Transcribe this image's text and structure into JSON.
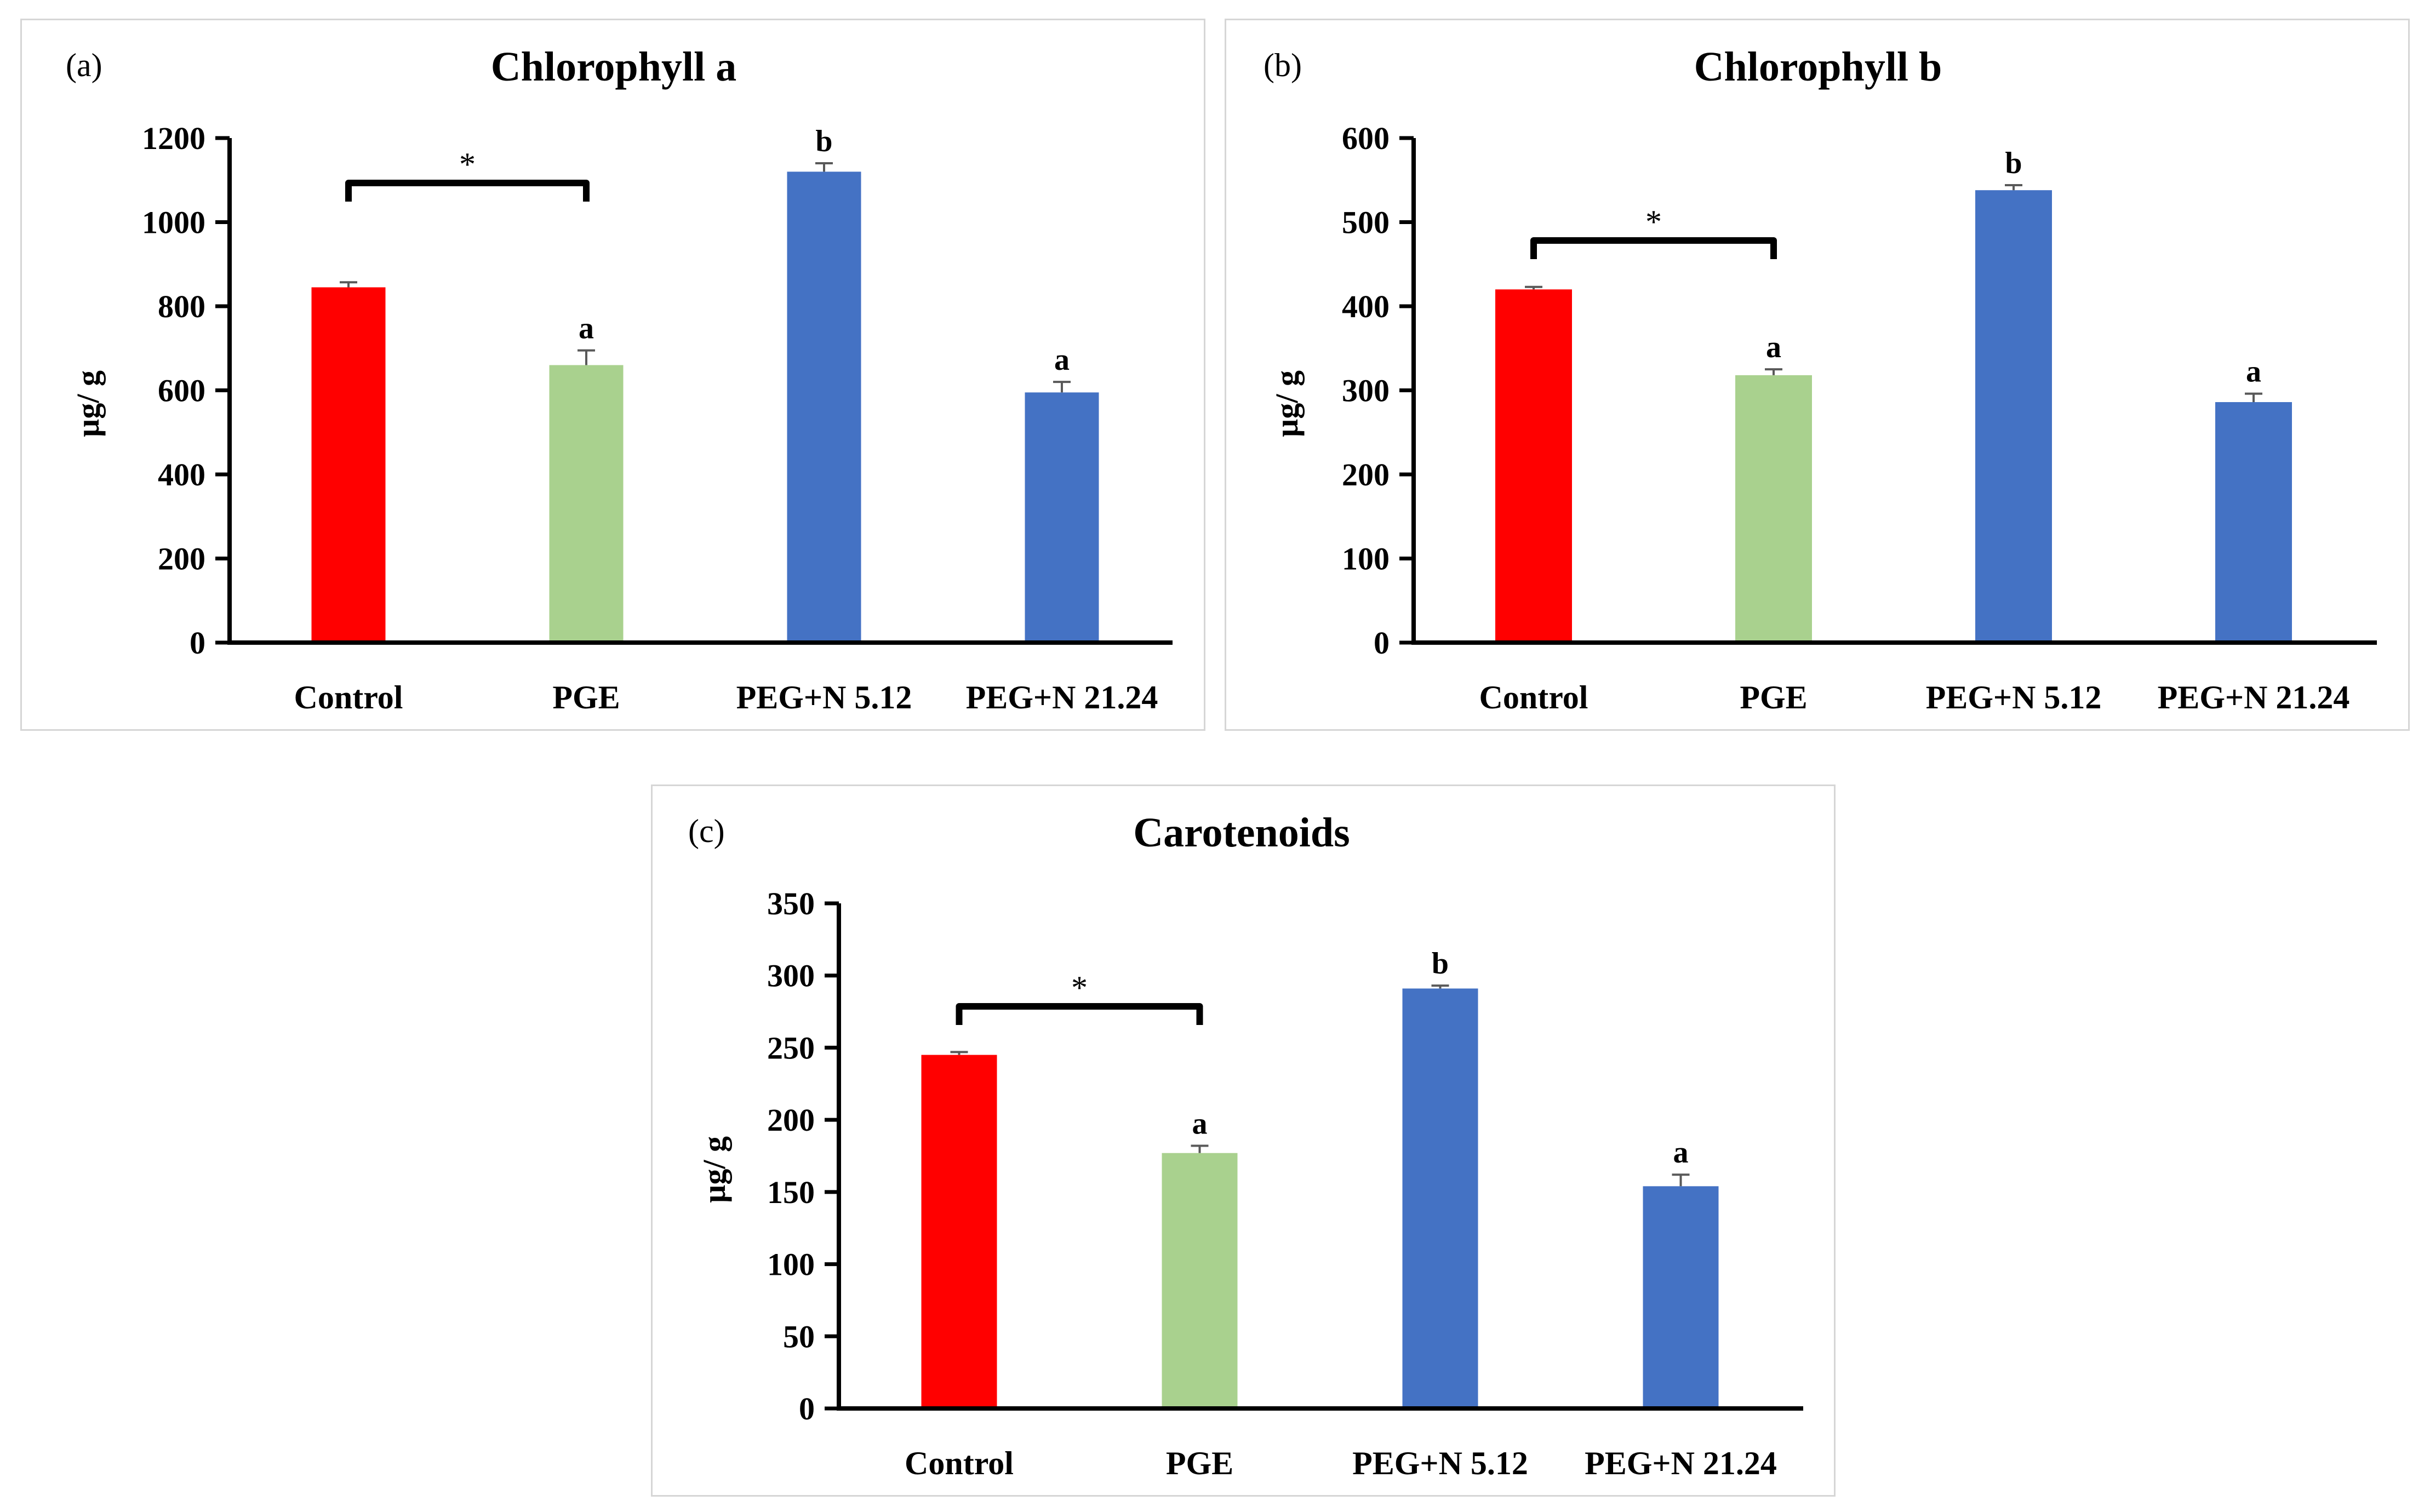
{
  "colors": {
    "control": "#ff0000",
    "pge": "#a9d18e",
    "peg": "#4472c4",
    "axis": "#000000",
    "error_bar": "#595959"
  },
  "chart_data": [
    {
      "type": "bar",
      "panel_label": "(a)",
      "title": "Chlorophyll a",
      "xlabel": "",
      "ylabel": "µg/ g",
      "ylim": [
        0,
        1200
      ],
      "ytick_step": 200,
      "yticks": [
        "0",
        "200",
        "400",
        "600",
        "800",
        "1000",
        "1200"
      ],
      "categories": [
        "Control",
        "PGE",
        "PEG+N 5.12",
        "PEG+N 21.24"
      ],
      "values": [
        845,
        660,
        1120,
        595
      ],
      "errors": [
        12,
        35,
        20,
        25
      ],
      "bar_colors": [
        "control",
        "pge",
        "peg",
        "peg"
      ],
      "significance_letters": [
        "",
        "a",
        "b",
        "a"
      ],
      "bracket": {
        "from": 0,
        "to": 1,
        "label": "*"
      },
      "grid": false
    },
    {
      "type": "bar",
      "panel_label": "(b)",
      "title": "Chlorophyll b",
      "xlabel": "",
      "ylabel": "µg/ g",
      "ylim": [
        0,
        600
      ],
      "ytick_step": 100,
      "yticks": [
        "0",
        "100",
        "200",
        "300",
        "400",
        "500",
        "600"
      ],
      "categories": [
        "Control",
        "PGE",
        "PEG+N 5.12",
        "PEG+N 21.24"
      ],
      "values": [
        420,
        318,
        538,
        286
      ],
      "errors": [
        3,
        7,
        6,
        10
      ],
      "bar_colors": [
        "control",
        "pge",
        "peg",
        "peg"
      ],
      "significance_letters": [
        "",
        "a",
        "b",
        "a"
      ],
      "bracket": {
        "from": 0,
        "to": 1,
        "label": "*"
      },
      "grid": false
    },
    {
      "type": "bar",
      "panel_label": "(c)",
      "title": "Carotenoids",
      "xlabel": "",
      "ylabel": "µg/ g",
      "ylim": [
        0,
        350
      ],
      "ytick_step": 50,
      "yticks": [
        "0",
        "50",
        "100",
        "150",
        "200",
        "250",
        "300",
        "350"
      ],
      "categories": [
        "Control",
        "PGE",
        "PEG+N 5.12",
        "PEG+N 21.24"
      ],
      "values": [
        245,
        177,
        291,
        154
      ],
      "errors": [
        2,
        5,
        2,
        8
      ],
      "bar_colors": [
        "control",
        "pge",
        "peg",
        "peg"
      ],
      "significance_letters": [
        "",
        "a",
        "b",
        "a"
      ],
      "bracket": {
        "from": 0,
        "to": 1,
        "label": "*"
      },
      "grid": false
    }
  ]
}
